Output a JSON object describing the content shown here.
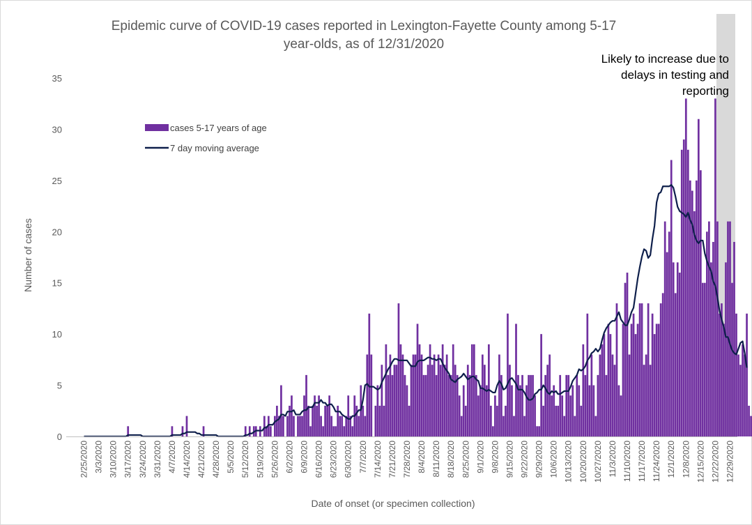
{
  "chart_data": {
    "type": "bar",
    "title": "Epidemic curve of COVID-19 cases reported in Lexington-Fayette County among 5-17 year-olds, as of 12/31/2020",
    "title_lines": [
      "Epidemic curve of COVID-19 cases reported in Lexington-Fayette County among 5-17",
      "year-olds, as of 12/31/2020"
    ],
    "xlabel": "Date of onset (or specimen collection)",
    "ylabel": "Number of cases",
    "ylim": [
      0,
      35
    ],
    "yticks": [
      "0",
      "5",
      "10",
      "15",
      "20",
      "25",
      "30",
      "35"
    ],
    "x_start": "2/25/2020",
    "x_end": "12/31/2020",
    "x_tick_labels": [
      "2/25/2020",
      "3/3/2020",
      "3/10/2020",
      "3/17/2020",
      "3/24/2020",
      "3/31/2020",
      "4/7/2020",
      "4/14/2020",
      "4/21/2020",
      "4/28/2020",
      "5/5/2020",
      "5/12/2020",
      "5/19/2020",
      "5/26/2020",
      "6/2/2020",
      "6/9/2020",
      "6/16/2020",
      "6/23/2020",
      "6/30/2020",
      "7/7/2020",
      "7/14/2020",
      "7/21/2020",
      "7/28/2020",
      "8/4/2020",
      "8/11/2020",
      "8/18/2020",
      "8/25/2020",
      "9/1/2020",
      "9/8/2020",
      "9/15/2020",
      "9/22/2020",
      "9/29/2020",
      "10/6/2020",
      "10/13/2020",
      "10/20/2020",
      "10/27/2020",
      "11/3/2020",
      "11/10/2020",
      "11/17/2020",
      "11/24/2020",
      "12/1/2020",
      "12/8/2020",
      "12/15/2020",
      "12/22/2020",
      "12/29/2020"
    ],
    "legend_position": "upper-left",
    "grid": false,
    "series": [
      {
        "name": "cases 5-17 years of age",
        "type": "bar",
        "color": "#7030a0",
        "values": [
          0,
          0,
          0,
          0,
          0,
          0,
          0,
          0,
          0,
          0,
          0,
          0,
          0,
          0,
          0,
          0,
          0,
          0,
          0,
          0,
          0,
          1,
          0,
          0,
          0,
          0,
          0,
          0,
          0,
          0,
          0,
          0,
          0,
          0,
          0,
          0,
          0,
          0,
          0,
          0,
          0,
          0,
          1,
          0,
          0,
          0,
          0,
          1,
          0,
          2,
          0,
          0,
          0,
          0,
          0,
          0,
          0,
          1,
          0,
          0,
          0,
          0,
          0,
          0,
          0,
          0,
          0,
          0,
          0,
          0,
          0,
          0,
          0,
          0,
          0,
          0,
          0,
          1,
          0,
          1,
          0,
          1,
          1,
          0,
          1,
          0,
          2,
          1,
          2,
          1,
          0,
          2,
          3,
          2,
          5,
          2,
          0,
          2,
          3,
          4,
          2,
          0,
          2,
          2,
          2,
          4,
          6,
          3,
          1,
          3,
          4,
          3,
          4,
          2,
          1,
          3,
          3,
          4,
          2,
          1,
          1,
          3,
          2,
          2,
          1,
          2,
          4,
          2,
          1,
          4,
          3,
          2,
          5,
          3,
          2,
          8,
          12,
          8,
          0,
          3,
          5,
          3,
          7,
          3,
          9,
          6,
          8,
          6,
          7,
          7,
          13,
          9,
          8,
          6,
          5,
          3,
          7,
          8,
          8,
          11,
          9,
          8,
          6,
          6,
          7,
          9,
          7,
          8,
          6,
          8,
          7,
          9,
          7,
          8,
          6,
          6,
          9,
          7,
          6,
          4,
          2,
          5,
          3,
          7,
          6,
          9,
          9,
          6,
          4,
          5,
          8,
          7,
          5,
          9,
          3,
          1,
          4,
          3,
          8,
          6,
          2,
          3,
          12,
          7,
          5,
          2,
          11,
          6,
          5,
          6,
          2,
          5,
          6,
          6,
          6,
          4,
          1,
          1,
          10,
          3,
          6,
          7,
          8,
          4,
          5,
          3,
          3,
          6,
          4,
          2,
          6,
          6,
          4,
          5,
          2,
          6,
          5,
          3,
          9,
          6,
          12,
          5,
          8,
          5,
          2,
          6,
          8,
          9,
          10,
          6,
          11,
          10,
          8,
          7,
          13,
          5,
          4,
          11,
          15,
          16,
          8,
          11,
          12,
          10,
          11,
          13,
          13,
          7,
          8,
          13,
          7,
          12,
          10,
          11,
          11,
          13,
          14,
          21,
          18,
          20,
          27,
          17,
          14,
          17,
          16,
          28,
          29,
          33,
          28,
          25,
          24,
          22,
          25,
          31,
          26,
          15,
          15,
          20,
          21,
          17,
          19,
          33,
          21,
          12,
          13,
          11,
          17,
          21,
          21,
          15,
          19,
          12,
          8,
          7,
          9,
          8,
          12,
          3,
          2,
          11,
          9,
          15,
          7,
          2,
          5,
          12,
          11,
          11,
          3
        ]
      },
      {
        "name": "7 day moving average",
        "type": "line",
        "color": "#0e1f4b",
        "values": [
          0,
          0,
          0,
          0,
          0,
          0,
          0,
          0,
          0,
          0,
          0,
          0,
          0,
          0,
          0,
          0,
          0,
          0,
          0,
          0,
          0,
          0.14,
          0.14,
          0.14,
          0.14,
          0.14,
          0.14,
          0.14,
          0,
          0,
          0,
          0,
          0,
          0,
          0,
          0,
          0,
          0,
          0,
          0,
          0,
          0,
          0.14,
          0.14,
          0.14,
          0.14,
          0.14,
          0.29,
          0.29,
          0.43,
          0.43,
          0.43,
          0.43,
          0.43,
          0.29,
          0.29,
          0.14,
          0.14,
          0.14,
          0.14,
          0.14,
          0.14,
          0.14,
          0.14,
          0,
          0,
          0,
          0,
          0,
          0,
          0,
          0,
          0,
          0,
          0,
          0,
          0,
          0.14,
          0.14,
          0.29,
          0.29,
          0.43,
          0.57,
          0.57,
          0.57,
          0.57,
          0.86,
          0.86,
          1.14,
          1.14,
          1.14,
          1.43,
          1.57,
          1.71,
          2.14,
          2.14,
          2,
          2.43,
          2.43,
          2.43,
          2.57,
          2.14,
          2.14,
          2.14,
          2.43,
          2.57,
          2.57,
          2.86,
          2.86,
          2.86,
          3.29,
          3.29,
          3.29,
          3.57,
          3.29,
          3.29,
          3,
          3.14,
          3.14,
          2.86,
          2.43,
          2.43,
          2.43,
          2.14,
          2,
          1.86,
          1.71,
          1.71,
          2,
          2,
          2.29,
          2.57,
          2.57,
          3.57,
          5,
          5.14,
          4.86,
          4.86,
          4.86,
          4.71,
          4.57,
          4.71,
          5.29,
          5.71,
          6.14,
          6.57,
          6.86,
          7.29,
          7.57,
          7.57,
          7.43,
          7.43,
          7.43,
          7.43,
          7.43,
          7.14,
          6.86,
          6.86,
          6.86,
          7.29,
          7.43,
          7.43,
          7.43,
          7.57,
          7.71,
          7.71,
          7.57,
          7.57,
          7.43,
          7.57,
          7.57,
          7.14,
          6.71,
          6.43,
          6.14,
          5.57,
          5.43,
          5.29,
          5.57,
          5.71,
          5.86,
          6.14,
          5.86,
          5.57,
          5.71,
          5.86,
          5.86,
          5.57,
          5.43,
          4.71,
          4.71,
          4.57,
          4.43,
          4.57,
          4.43,
          4.29,
          4.29,
          5,
          5.43,
          5.14,
          4.57,
          4.71,
          5.14,
          5.57,
          5.71,
          5.43,
          5.14,
          4.57,
          4.57,
          4.57,
          4.29,
          3.86,
          3.57,
          3.57,
          3.71,
          4.14,
          4.29,
          4.57,
          4.57,
          5,
          4.71,
          4.29,
          4.14,
          4.43,
          4.29,
          4.43,
          4.14,
          4.14,
          4.29,
          4.43,
          4.43,
          4.43,
          4.86,
          5.43,
          5.71,
          6,
          6.57,
          6.43,
          6.57,
          6.86,
          7.43,
          7.71,
          8.14,
          8.29,
          8.57,
          8.29,
          8.57,
          9.43,
          10.14,
          10.57,
          10.86,
          11.14,
          11.29,
          11.29,
          11.71,
          12.14,
          11.43,
          11.14,
          10.86,
          10.86,
          11.43,
          12.14,
          12.57,
          14,
          15.43,
          16.57,
          17.57,
          18.29,
          18.14,
          17.43,
          17.71,
          19.29,
          20.57,
          22.86,
          23.71,
          23.86,
          24.43,
          24.43,
          24.43,
          24.43,
          24.57,
          24.29,
          23.43,
          22.43,
          22,
          21.86,
          21.71,
          21.43,
          21.86,
          21.14,
          20.71,
          19.71,
          19.14,
          18.86,
          19.14,
          19.14,
          17.86,
          17.14,
          16.57,
          16.14,
          15.14,
          14.71,
          13.57,
          12.29,
          11.43,
          10.71,
          9.71,
          9.71,
          9,
          8.43,
          8.14,
          8,
          8.57,
          9.14,
          9.29,
          8.14,
          6.71
        ]
      }
    ],
    "shaded_region": {
      "start": "12/23/2020",
      "end": "12/31/2020",
      "color": "#d9d9d9"
    },
    "annotation_lines": [
      "Likely to increase due to",
      "delays in testing and",
      "reporting"
    ]
  }
}
